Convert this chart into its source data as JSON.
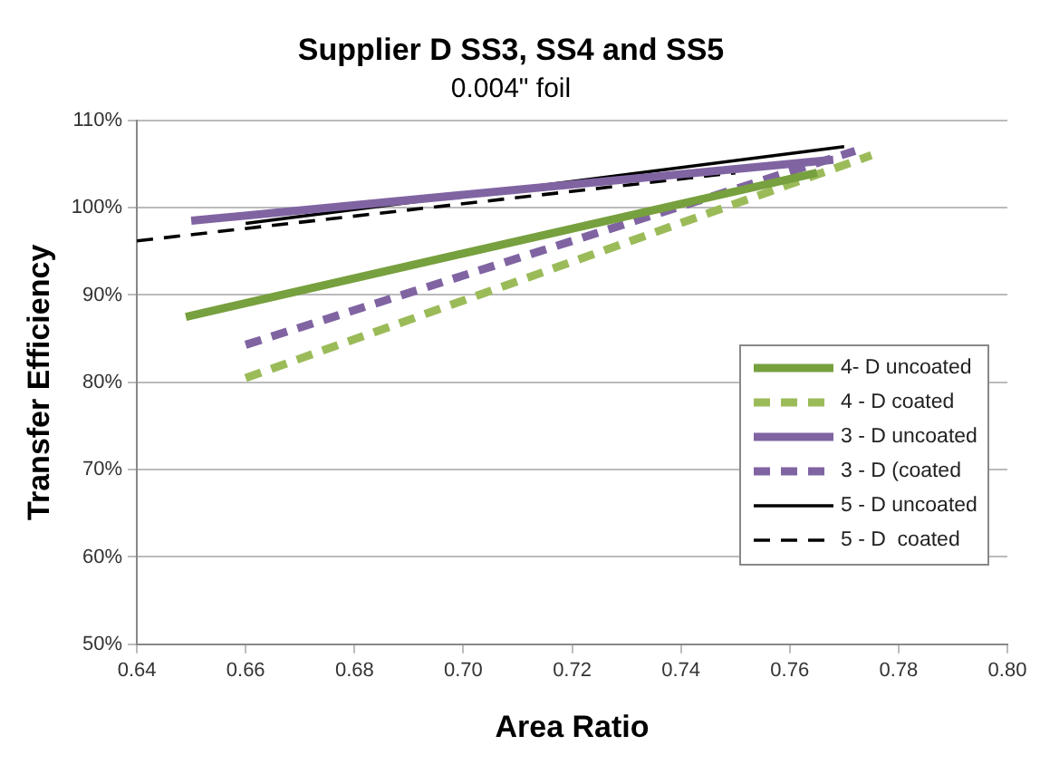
{
  "chart_data": {
    "type": "line",
    "title": "Supplier D SS3, SS4 and SS5",
    "subtitle": "0.004\" foil",
    "xlabel": "Area Ratio",
    "ylabel": "Transfer Efficiency",
    "xlim": [
      0.64,
      0.8
    ],
    "xticks": [
      {
        "value": 0.64,
        "label": "0.64"
      },
      {
        "value": 0.66,
        "label": "0.66"
      },
      {
        "value": 0.68,
        "label": "0.68"
      },
      {
        "value": 0.7,
        "label": "0.70"
      },
      {
        "value": 0.72,
        "label": "0.72"
      },
      {
        "value": 0.74,
        "label": "0.74"
      },
      {
        "value": 0.76,
        "label": "0.76"
      },
      {
        "value": 0.78,
        "label": "0.78"
      },
      {
        "value": 0.8,
        "label": "0.80"
      }
    ],
    "ylim": [
      50,
      110
    ],
    "yticks": [
      {
        "value": 50,
        "label": "50%"
      },
      {
        "value": 60,
        "label": "60%"
      },
      {
        "value": 70,
        "label": "70%"
      },
      {
        "value": 80,
        "label": "80%"
      },
      {
        "value": 90,
        "label": "90%"
      },
      {
        "value": 100,
        "label": "100%"
      },
      {
        "value": 110,
        "label": "110%"
      }
    ],
    "grid": "y",
    "legend": "right",
    "marker": "none",
    "series": [
      {
        "name": "4- D uncoated",
        "color": "#77a03e",
        "line_style": "solid",
        "x": [
          0.649,
          0.765
        ],
        "values": [
          87.5,
          104
        ]
      },
      {
        "name": "4 - D coated",
        "color": "#9bbb59",
        "line_style": "dashed",
        "x": [
          0.66,
          0.775
        ],
        "values": [
          80.5,
          106
        ]
      },
      {
        "name": "3 - D uncoated",
        "color": "#8064a2",
        "line_style": "solid",
        "x": [
          0.65,
          0.768
        ],
        "values": [
          98.5,
          105.5
        ]
      },
      {
        "name": "3 - D (coated",
        "color": "#8064a2",
        "line_style": "dashed",
        "x": [
          0.66,
          0.772
        ],
        "values": [
          84.3,
          106.5
        ]
      },
      {
        "name": "5 - D uncoated",
        "color": "#000000",
        "line_style": "solid",
        "x": [
          0.66,
          0.77
        ],
        "values": [
          98.2,
          107
        ]
      },
      {
        "name": "5 - D  coated",
        "color": "#000000",
        "line_style": "dashed",
        "x": [
          0.64,
          0.75
        ],
        "values": [
          96.2,
          104
        ]
      }
    ]
  }
}
